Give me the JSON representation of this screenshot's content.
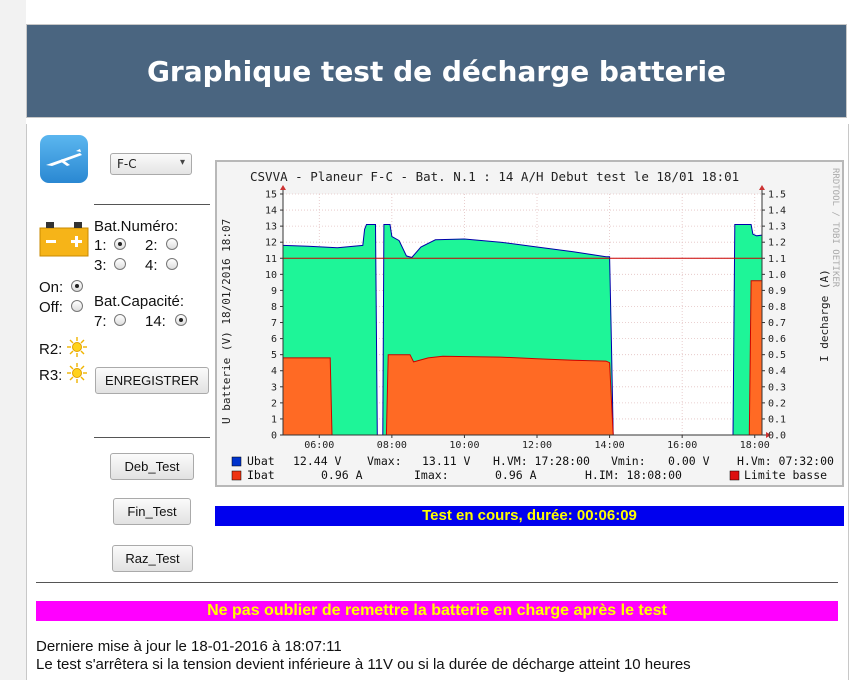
{
  "header": {
    "title": "Graphique test de décharge batterie"
  },
  "aircraft_select": {
    "value": "F-C"
  },
  "battery": {
    "numero_label": "Bat.Numéro:",
    "numero_options": [
      {
        "label": "1:",
        "selected": true
      },
      {
        "label": "2:",
        "selected": false
      },
      {
        "label": "3:",
        "selected": false
      },
      {
        "label": "4:",
        "selected": false
      }
    ],
    "on_label": "On:",
    "off_label": "Off:",
    "on_selected": true,
    "capacite_label": "Bat.Capacité:",
    "capacite_options": [
      {
        "label": "7:",
        "selected": false
      },
      {
        "label": "14:",
        "selected": true
      }
    ],
    "relays": [
      {
        "label": "R2:"
      },
      {
        "label": "R3:"
      }
    ],
    "save_label": "ENREGISTRER"
  },
  "buttons": {
    "deb_test": "Deb_Test",
    "fin_test": "Fin_Test",
    "raz_test": "Raz_Test"
  },
  "chart_data": {
    "type": "area",
    "title": "CSVVA - Planeur F-C    - Bat. N.1 : 14 A/H   Debut test le 18/01 18:01",
    "ylabel": "U batterie (V) 18/01/2016 18:07",
    "y2label": "I decharge (A)",
    "watermark": "RRDTOOL / TOBI OETIKER",
    "ylim": [
      0,
      15
    ],
    "y2lim": [
      0,
      1.5
    ],
    "y_ticks": [
      0,
      1,
      2,
      3,
      4,
      5,
      6,
      7,
      8,
      9,
      10,
      11,
      12,
      13,
      14,
      15
    ],
    "y2_ticks": [
      "0.0",
      "0.1",
      "0.2",
      "0.3",
      "0.4",
      "0.5",
      "0.6",
      "0.7",
      "0.8",
      "0.9",
      "1.0",
      "1.1",
      "1.2",
      "1.3",
      "1.4",
      "1.5"
    ],
    "x_range_hours": [
      5.0,
      18.2
    ],
    "x_ticks": [
      {
        "h": 6,
        "label": "06:00"
      },
      {
        "h": 8,
        "label": "08:00"
      },
      {
        "h": 10,
        "label": "10:00"
      },
      {
        "h": 12,
        "label": "12:00"
      },
      {
        "h": 14,
        "label": "14:00"
      },
      {
        "h": 16,
        "label": "16:00"
      },
      {
        "h": 18,
        "label": "18:00"
      }
    ],
    "limit_line": 11,
    "series": [
      {
        "name": "Ubat",
        "color": "#1ef598",
        "edge": "#0000aa",
        "points": [
          [
            5.0,
            11.8
          ],
          [
            5.7,
            11.75
          ],
          [
            6.5,
            11.65
          ],
          [
            7.2,
            11.8
          ],
          [
            7.25,
            12.8
          ],
          [
            7.3,
            13.1
          ],
          [
            7.55,
            13.1
          ],
          [
            7.6,
            0
          ],
          [
            7.75,
            0
          ],
          [
            7.78,
            13.1
          ],
          [
            7.95,
            13.1
          ],
          [
            8.0,
            12.35
          ],
          [
            8.2,
            12.1
          ],
          [
            8.4,
            11.15
          ],
          [
            8.55,
            11.05
          ],
          [
            8.8,
            11.7
          ],
          [
            9.2,
            12.15
          ],
          [
            10.0,
            12.2
          ],
          [
            11.0,
            12.0
          ],
          [
            12.0,
            11.7
          ],
          [
            13.0,
            11.4
          ],
          [
            13.9,
            11.1
          ],
          [
            14.0,
            11.1
          ],
          [
            14.05,
            5.8
          ],
          [
            14.1,
            0
          ],
          [
            17.4,
            0
          ],
          [
            17.45,
            13.1
          ],
          [
            17.9,
            13.1
          ],
          [
            17.95,
            12.5
          ],
          [
            18.05,
            12.4
          ],
          [
            18.2,
            12.44
          ]
        ]
      },
      {
        "name": "Ibat",
        "color": "#ff6a24",
        "edge": "#cc0000",
        "points": [
          [
            5.0,
            4.8
          ],
          [
            6.3,
            4.8
          ],
          [
            6.35,
            0
          ],
          [
            7.85,
            0
          ],
          [
            7.9,
            5.0
          ],
          [
            8.5,
            5.0
          ],
          [
            8.6,
            4.55
          ],
          [
            9.0,
            4.8
          ],
          [
            9.4,
            4.9
          ],
          [
            11.0,
            4.85
          ],
          [
            12.0,
            4.75
          ],
          [
            13.0,
            4.65
          ],
          [
            13.9,
            4.6
          ],
          [
            14.0,
            4.5
          ],
          [
            14.05,
            2.2
          ],
          [
            14.1,
            0
          ],
          [
            17.85,
            0
          ],
          [
            17.9,
            9.6
          ],
          [
            18.2,
            9.6
          ]
        ]
      }
    ],
    "legend": [
      {
        "name": "Ubat",
        "swatch": "#0033cc",
        "current_label": "12.44 V",
        "max_label": "Vmax:",
        "max_value": "13.11 V",
        "h_label": "H.VM: 17:28:00",
        "min_label": "Vmin:",
        "min_value": "0.00 V",
        "h2_label": "H.Vm: 07:32:00"
      },
      {
        "name": "Ibat",
        "swatch": "#ee3311",
        "current_label": "0.96 A",
        "max_label": "Imax:",
        "max_value": "0.96 A",
        "h_label": "H.IM: 18:08:00",
        "limit_swatch": "#dd1111",
        "limit_label": "Limite basse"
      }
    ]
  },
  "status": {
    "text": "Test en cours, durée: 00:06:09"
  },
  "warning": {
    "text": "Ne pas oublier de remettre la batterie en charge après le test"
  },
  "info": {
    "last_update": "Derniere mise à jour le 18-01-2016 à 18:07:11",
    "stop_rule": "Le test s'arrêtera si la tension devient inférieure à 11V ou si la durée de décharge atteint 10 heures"
  }
}
